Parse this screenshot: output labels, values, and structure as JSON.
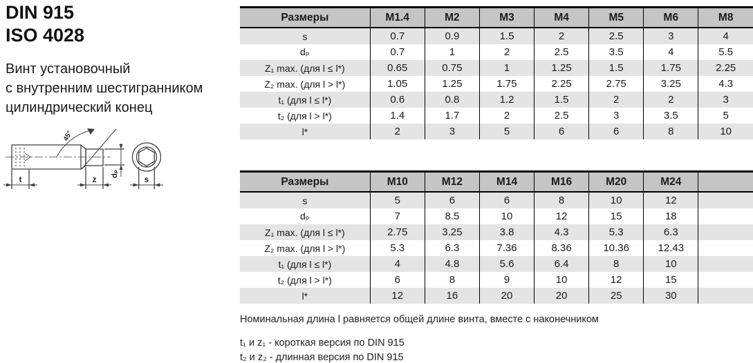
{
  "page": {
    "standards": [
      "DIN 915",
      "ISO 4028"
    ],
    "description": [
      "Винт установочный",
      "с внутренним шестигранником",
      "цилиндрический конец"
    ]
  },
  "drawing": {
    "angle_label": "45°",
    "socket_depth_label": "t",
    "point_length_label": "z",
    "point_diameter_label": "dₚ",
    "hex_size_label": "s"
  },
  "tables": [
    {
      "title": "M1.4–M8 dimensions",
      "header": [
        "Размеры",
        "M1.4",
        "M2",
        "M3",
        "M4",
        "M5",
        "M6",
        "M8"
      ],
      "rows": [
        {
          "label": "s",
          "values": [
            "0.7",
            "0.9",
            "1.5",
            "2",
            "2.5",
            "3",
            "4"
          ]
        },
        {
          "label": "dₚ",
          "values": [
            "0.7",
            "1",
            "2",
            "2.5",
            "3.5",
            "4",
            "5.5"
          ]
        },
        {
          "label": "Z₁ max. (для l ≤ l*)",
          "values": [
            "0.65",
            "0.75",
            "1",
            "1.25",
            "1.5",
            "1.75",
            "2.25"
          ]
        },
        {
          "label": "Z₂ max. (для l > l*)",
          "values": [
            "1.05",
            "1.25",
            "1.75",
            "2.25",
            "2.75",
            "3.25",
            "4.3"
          ]
        },
        {
          "label": "t₁ (для l ≤ l*)",
          "values": [
            "0.6",
            "0.8",
            "1.2",
            "1.5",
            "2",
            "2",
            "3"
          ]
        },
        {
          "label": "t₂ (для l > l*)",
          "values": [
            "1.4",
            "1.7",
            "2",
            "2.5",
            "3",
            "3.5",
            "5"
          ]
        },
        {
          "label": "l*",
          "values": [
            "2",
            "3",
            "5",
            "6",
            "6",
            "8",
            "10"
          ]
        }
      ]
    },
    {
      "title": "M10–M24 dimensions",
      "header": [
        "Размеры",
        "M10",
        "M12",
        "M14",
        "M16",
        "M20",
        "M24",
        ""
      ],
      "rows": [
        {
          "label": "s",
          "values": [
            "5",
            "6",
            "6",
            "8",
            "10",
            "12",
            ""
          ]
        },
        {
          "label": "dₚ",
          "values": [
            "7",
            "8.5",
            "10",
            "12",
            "15",
            "18",
            ""
          ]
        },
        {
          "label": "Z₁ max. (для l ≤ l*)",
          "values": [
            "2.75",
            "3.25",
            "3.8",
            "4.3",
            "5.3",
            "6.3",
            ""
          ]
        },
        {
          "label": "Z₂ max. (для l > l*)",
          "values": [
            "5.3",
            "6.3",
            "7.36",
            "8.36",
            "10.36",
            "12.43",
            ""
          ]
        },
        {
          "label": "t₁ (для l ≤ l*)",
          "values": [
            "4",
            "4.8",
            "5.6",
            "6.4",
            "8",
            "10",
            ""
          ]
        },
        {
          "label": "t₂ (для l > l*)",
          "values": [
            "6",
            "8",
            "9",
            "10",
            "12",
            "15",
            ""
          ]
        },
        {
          "label": "l*",
          "values": [
            "12",
            "16",
            "20",
            "20",
            "25",
            "30",
            ""
          ]
        }
      ]
    }
  ],
  "notes": [
    "Номинальная длина l равняется общей длине винта, вместе с наконечником",
    "t₁ и z₁ - короткая версия по DIN 915",
    "t₂ и z₂ - длинная версия по DIN 915"
  ],
  "colors": {
    "header_bg": "#c5c5c5",
    "row_alt_bg": "#e4e4e4",
    "table_border": "#000000",
    "drawing_stroke": "#3f3f3f"
  }
}
